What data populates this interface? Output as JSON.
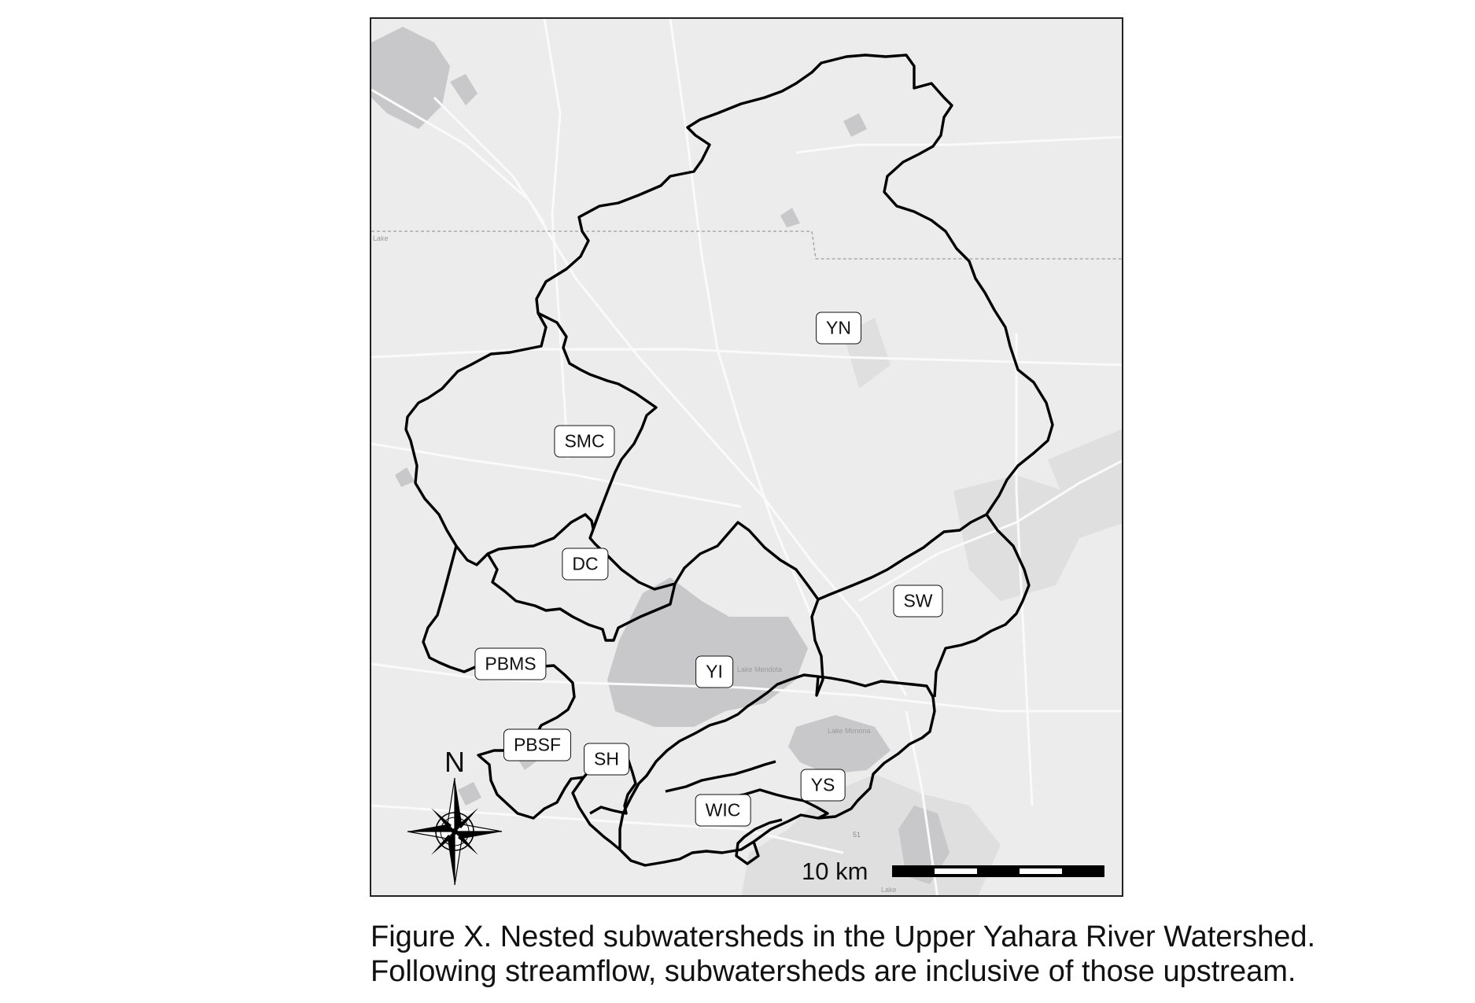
{
  "map": {
    "labels": {
      "yn": "YN",
      "smc": "SMC",
      "dc": "DC",
      "sw": "SW",
      "pbms": "PBMS",
      "yi": "YI",
      "pbsf": "PBSF",
      "sh": "SH",
      "ys": "YS",
      "wic": "WIC"
    },
    "basemap_text": {
      "lake_left": "Lake",
      "lake_center": "Lake Mendota",
      "lake_monona": "Lake Monona",
      "lake_bottom": "Lake",
      "road_marker": "51"
    },
    "north_arrow_label": "N",
    "scale_bar": {
      "label": "10 km"
    },
    "colors": {
      "land": "#ececec",
      "water": "#c9c9cb",
      "roads": "#f8f8f8",
      "urban": "#dedede",
      "boundary": "#000000"
    }
  },
  "caption": {
    "line1": "Figure X. Nested subwatersheds in the Upper Yahara River Watershed.",
    "line2": "Following streamflow, subwatersheds are inclusive of those upstream."
  }
}
